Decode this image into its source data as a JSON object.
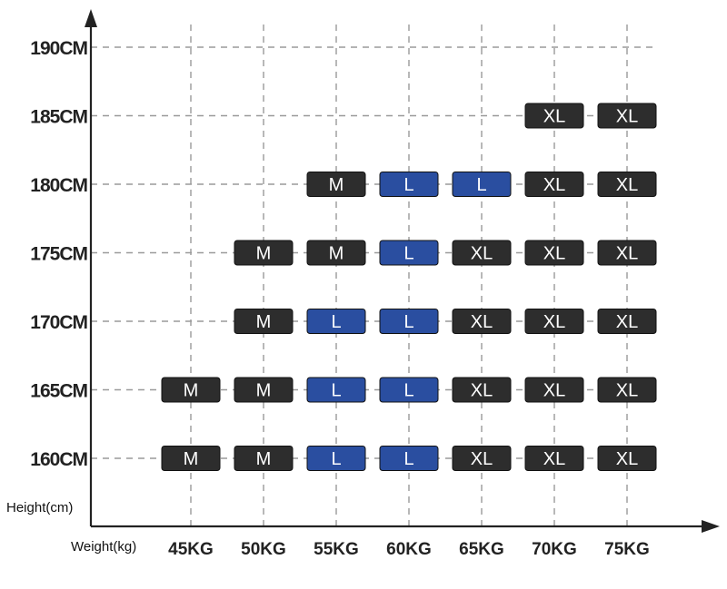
{
  "chart_data": {
    "type": "table",
    "x_categories": [
      "45KG",
      "50KG",
      "55KG",
      "60KG",
      "65KG",
      "70KG",
      "75KG"
    ],
    "y_categories": [
      "160CM",
      "165CM",
      "170CM",
      "175CM",
      "180CM",
      "185CM",
      "190CM"
    ],
    "xlabel": "Weight(kg)",
    "ylabel": "Height(cm)",
    "cells": [
      {
        "x": "45KG",
        "y": "160CM",
        "size": "M"
      },
      {
        "x": "50KG",
        "y": "160CM",
        "size": "M"
      },
      {
        "x": "55KG",
        "y": "160CM",
        "size": "L"
      },
      {
        "x": "60KG",
        "y": "160CM",
        "size": "L"
      },
      {
        "x": "65KG",
        "y": "160CM",
        "size": "XL"
      },
      {
        "x": "70KG",
        "y": "160CM",
        "size": "XL"
      },
      {
        "x": "75KG",
        "y": "160CM",
        "size": "XL"
      },
      {
        "x": "45KG",
        "y": "165CM",
        "size": "M"
      },
      {
        "x": "50KG",
        "y": "165CM",
        "size": "M"
      },
      {
        "x": "55KG",
        "y": "165CM",
        "size": "L"
      },
      {
        "x": "60KG",
        "y": "165CM",
        "size": "L"
      },
      {
        "x": "65KG",
        "y": "165CM",
        "size": "XL"
      },
      {
        "x": "70KG",
        "y": "165CM",
        "size": "XL"
      },
      {
        "x": "75KG",
        "y": "165CM",
        "size": "XL"
      },
      {
        "x": "50KG",
        "y": "170CM",
        "size": "M"
      },
      {
        "x": "55KG",
        "y": "170CM",
        "size": "L"
      },
      {
        "x": "60KG",
        "y": "170CM",
        "size": "L"
      },
      {
        "x": "65KG",
        "y": "170CM",
        "size": "XL"
      },
      {
        "x": "70KG",
        "y": "170CM",
        "size": "XL"
      },
      {
        "x": "75KG",
        "y": "170CM",
        "size": "XL"
      },
      {
        "x": "50KG",
        "y": "175CM",
        "size": "M"
      },
      {
        "x": "55KG",
        "y": "175CM",
        "size": "M"
      },
      {
        "x": "60KG",
        "y": "175CM",
        "size": "L"
      },
      {
        "x": "65KG",
        "y": "175CM",
        "size": "XL"
      },
      {
        "x": "70KG",
        "y": "175CM",
        "size": "XL"
      },
      {
        "x": "75KG",
        "y": "175CM",
        "size": "XL"
      },
      {
        "x": "55KG",
        "y": "180CM",
        "size": "M"
      },
      {
        "x": "60KG",
        "y": "180CM",
        "size": "L"
      },
      {
        "x": "65KG",
        "y": "180CM",
        "size": "L"
      },
      {
        "x": "70KG",
        "y": "180CM",
        "size": "XL"
      },
      {
        "x": "75KG",
        "y": "180CM",
        "size": "XL"
      },
      {
        "x": "70KG",
        "y": "185CM",
        "size": "XL"
      },
      {
        "x": "75KG",
        "y": "185CM",
        "size": "XL"
      }
    ],
    "size_colors": {
      "M": "#2d2d2d",
      "L": "#2a4ea0",
      "XL": "#2d2d2d"
    },
    "grid": true,
    "legend": "none"
  }
}
